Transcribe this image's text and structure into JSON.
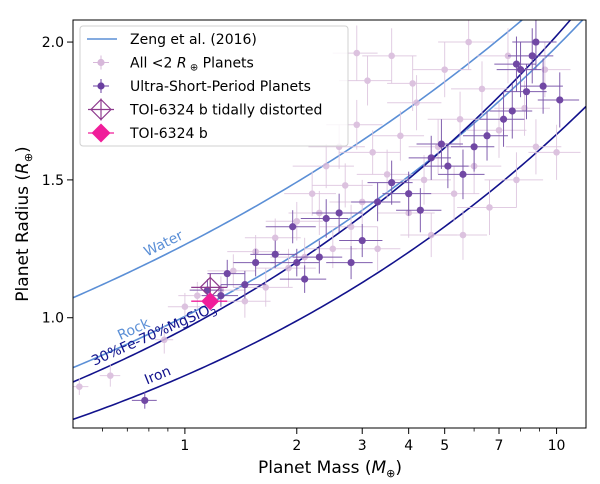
{
  "chart_data": {
    "type": "scatter",
    "xlabel": "Planet Mass (",
    "xlabel_unit": "M",
    "xlabel_sub": "⊕",
    "xlabel_end": ")",
    "ylabel": "Planet Radius (",
    "ylabel_unit": "R",
    "ylabel_sub": "⊕",
    "ylabel_end": ")",
    "x_scale": "log",
    "xlim": [
      0.5,
      12.0
    ],
    "ylim": [
      0.6,
      2.08
    ],
    "x_major_ticks": [
      {
        "value": 1,
        "label": "1"
      },
      {
        "value": 2,
        "label": "2"
      },
      {
        "value": 3,
        "label": "3"
      },
      {
        "value": 4,
        "label": "4"
      },
      {
        "value": 5,
        "label": "5"
      },
      {
        "value": 7,
        "label": "7"
      },
      {
        "value": 10,
        "label": "10"
      }
    ],
    "x_minor_ticks": [
      0.6,
      0.7,
      0.8,
      0.9,
      6,
      8,
      9
    ],
    "y_ticks": [
      {
        "value": 1.0,
        "label": "1.0"
      },
      {
        "value": 1.5,
        "label": "1.5"
      },
      {
        "value": 2.0,
        "label": "2.0"
      }
    ],
    "legend": {
      "placement": "top-left",
      "entries": [
        {
          "label": "Zeng et al. (2016)",
          "marker": "line",
          "color": "#5b8fd6"
        },
        {
          "label": "All <2 ",
          "label_sym": "R",
          "label_sub": " ⊕",
          "label_end": " Planets",
          "marker": "dot-err",
          "color": "#d7b8da"
        },
        {
          "label": "Ultra-Short-Period Planets",
          "marker": "dot-err",
          "color": "#6a3fa0"
        },
        {
          "label": "TOI-6324 b tidally distorted",
          "marker": "open-diamond",
          "color": "#8e3a8e"
        },
        {
          "label": "TOI-6324 b",
          "marker": "filled-diamond",
          "color": "#f01e9a"
        }
      ]
    },
    "curves": [
      {
        "name": "Water",
        "color": "#5b8fd6",
        "A": 1.265,
        "B": 0.5,
        "label": "Water",
        "label_at": 0.79
      },
      {
        "name": "Rock",
        "color": "#5b8fd6",
        "A": 1.005,
        "B": 0.62,
        "label": "Rock",
        "label_at": 0.67
      },
      {
        "name": "30%Fe-70%MgSiO3",
        "color": "#12128c",
        "A": 0.96,
        "B": 0.68,
        "label": "30%Fe-70%MgSiO",
        "label_sub": "3",
        "label_at": 0.57
      },
      {
        "name": "Iron",
        "color": "#12128c",
        "A": 0.79,
        "B": 0.68,
        "label": "Iron",
        "label_at": 0.79
      }
    ],
    "all_planets": [
      [
        0.52,
        0.75,
        0.03,
        0.03
      ],
      [
        0.63,
        0.79,
        0.04,
        0.04
      ],
      [
        0.88,
        0.92,
        0.05,
        0.05
      ],
      [
        1.0,
        1.04,
        0.1,
        0.05
      ],
      [
        1.08,
        1.08,
        0.12,
        0.05
      ],
      [
        1.25,
        1.1,
        0.2,
        0.05
      ],
      [
        1.35,
        1.17,
        0.2,
        0.06
      ],
      [
        1.45,
        1.06,
        0.25,
        0.06
      ],
      [
        1.55,
        1.24,
        0.25,
        0.06
      ],
      [
        1.65,
        1.11,
        0.3,
        0.07
      ],
      [
        1.75,
        1.29,
        0.3,
        0.07
      ],
      [
        1.9,
        1.18,
        0.35,
        0.07
      ],
      [
        2.0,
        1.35,
        0.35,
        0.07
      ],
      [
        2.1,
        1.22,
        0.4,
        0.07
      ],
      [
        2.2,
        1.45,
        0.35,
        0.08
      ],
      [
        2.3,
        1.38,
        0.4,
        0.08
      ],
      [
        2.4,
        1.55,
        0.45,
        0.08
      ],
      [
        2.5,
        1.25,
        0.4,
        0.07
      ],
      [
        2.6,
        1.62,
        0.45,
        0.08
      ],
      [
        2.7,
        1.48,
        0.5,
        0.08
      ],
      [
        2.8,
        1.33,
        0.5,
        0.08
      ],
      [
        2.9,
        1.7,
        0.5,
        0.09
      ],
      [
        3.0,
        1.42,
        0.55,
        0.08
      ],
      [
        3.1,
        1.86,
        0.5,
        0.09
      ],
      [
        3.2,
        1.6,
        0.6,
        0.08
      ],
      [
        3.3,
        1.25,
        0.5,
        0.08
      ],
      [
        3.5,
        1.52,
        0.6,
        0.09
      ],
      [
        3.6,
        1.95,
        0.6,
        0.1
      ],
      [
        3.8,
        1.66,
        0.6,
        0.09
      ],
      [
        4.0,
        1.38,
        0.7,
        0.09
      ],
      [
        4.2,
        1.78,
        0.7,
        0.1
      ],
      [
        4.4,
        1.5,
        0.8,
        0.09
      ],
      [
        4.6,
        1.3,
        0.8,
        0.08
      ],
      [
        4.8,
        1.62,
        0.8,
        0.1
      ],
      [
        5.0,
        1.9,
        0.9,
        0.1
      ],
      [
        5.3,
        1.45,
        0.9,
        0.1
      ],
      [
        5.5,
        1.72,
        1.0,
        0.1
      ],
      [
        5.8,
        2.0,
        1.0,
        0.1
      ],
      [
        6.0,
        1.55,
        1.1,
        0.1
      ],
      [
        6.3,
        1.83,
        1.1,
        0.1
      ],
      [
        6.6,
        1.4,
        1.2,
        0.1
      ],
      [
        7.0,
        1.68,
        1.3,
        0.1
      ],
      [
        7.4,
        1.95,
        1.3,
        0.1
      ],
      [
        7.8,
        1.5,
        1.4,
        0.1
      ],
      [
        8.2,
        1.76,
        1.4,
        0.1
      ],
      [
        8.8,
        1.62,
        1.5,
        0.1
      ],
      [
        9.3,
        1.9,
        1.6,
        0.1
      ],
      [
        10.0,
        1.6,
        1.6,
        0.1
      ],
      [
        4.1,
        1.85,
        0.6,
        0.1
      ],
      [
        2.9,
        1.96,
        0.4,
        0.1
      ],
      [
        5.6,
        1.3,
        0.9,
        0.09
      ]
    ],
    "usp_planets": [
      [
        0.78,
        0.7,
        0.06,
        0.03
      ],
      [
        1.15,
        1.1,
        0.12,
        0.04
      ],
      [
        1.25,
        1.08,
        0.14,
        0.04
      ],
      [
        1.3,
        1.16,
        0.15,
        0.05
      ],
      [
        1.45,
        1.12,
        0.2,
        0.05
      ],
      [
        1.55,
        1.2,
        0.2,
        0.05
      ],
      [
        1.75,
        1.23,
        0.25,
        0.05
      ],
      [
        1.95,
        1.33,
        0.3,
        0.06
      ],
      [
        2.0,
        1.2,
        0.3,
        0.05
      ],
      [
        2.1,
        1.14,
        0.3,
        0.05
      ],
      [
        2.3,
        1.22,
        0.35,
        0.06
      ],
      [
        2.4,
        1.36,
        0.35,
        0.07
      ],
      [
        2.6,
        1.38,
        0.4,
        0.07
      ],
      [
        2.8,
        1.2,
        0.4,
        0.06
      ],
      [
        3.0,
        1.28,
        0.4,
        0.06
      ],
      [
        3.3,
        1.42,
        0.5,
        0.07
      ],
      [
        3.6,
        1.49,
        0.5,
        0.08
      ],
      [
        4.0,
        1.45,
        0.6,
        0.08
      ],
      [
        4.3,
        1.39,
        0.6,
        0.08
      ],
      [
        4.6,
        1.58,
        0.6,
        0.08
      ],
      [
        4.9,
        1.63,
        0.7,
        0.09
      ],
      [
        5.1,
        1.55,
        0.7,
        0.08
      ],
      [
        5.6,
        1.52,
        0.8,
        0.09
      ],
      [
        6.0,
        1.62,
        0.8,
        0.09
      ],
      [
        6.5,
        1.66,
        0.9,
        0.09
      ],
      [
        7.2,
        1.72,
        1.0,
        0.1
      ],
      [
        7.6,
        1.75,
        1.0,
        0.1
      ],
      [
        8.0,
        1.9,
        1.1,
        0.1
      ],
      [
        8.3,
        1.82,
        1.1,
        0.1
      ],
      [
        8.6,
        1.95,
        1.2,
        0.1
      ],
      [
        8.8,
        2.0,
        1.2,
        0.1
      ],
      [
        9.2,
        1.84,
        1.2,
        0.1
      ],
      [
        10.2,
        1.79,
        1.3,
        0.1
      ],
      [
        7.8,
        1.92,
        1.0,
        0.1
      ]
    ],
    "toi_distorted": {
      "x": 1.17,
      "y": 1.11,
      "xerr": 0.13,
      "yerr": 0.05,
      "color": "#8e3a8e"
    },
    "toi": {
      "x": 1.17,
      "y": 1.06,
      "xerr": 0.13,
      "yerr": 0.03,
      "color": "#f01e9a"
    }
  }
}
